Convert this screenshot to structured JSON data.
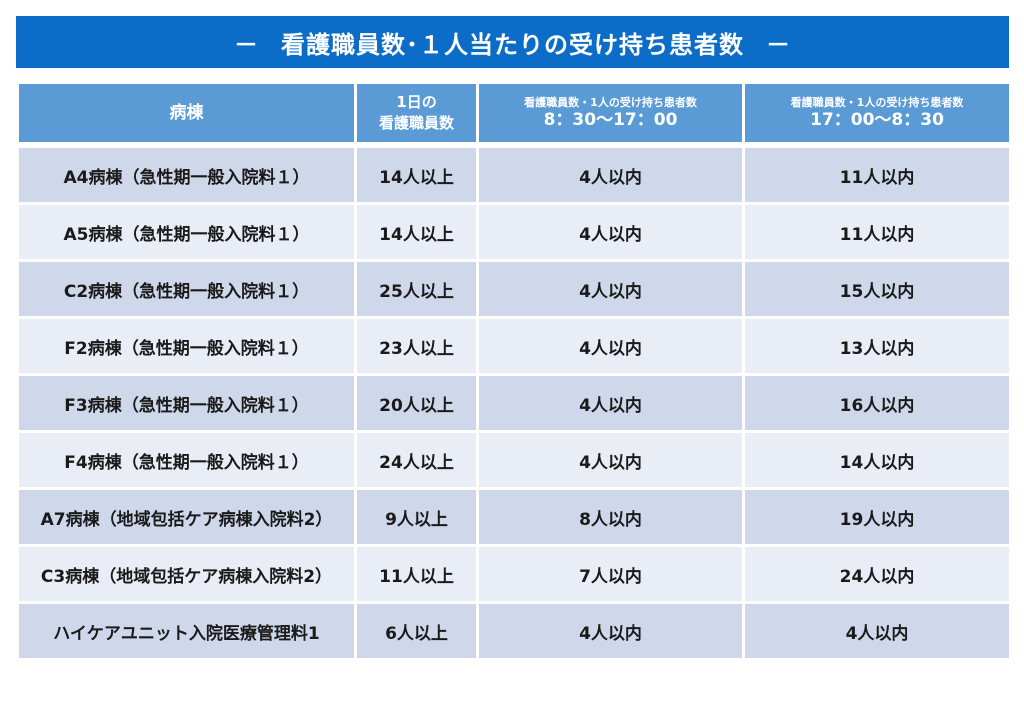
{
  "title": {
    "dash_left": "－",
    "text": "看護職員数･１人当たりの受け持ち患者数",
    "dash_right": "－"
  },
  "table": {
    "headers": {
      "ward": "病棟",
      "staff_line1": "1日の",
      "staff_line2": "看護職員数",
      "day_small": "看護職員数・1人の受け持ち患者数",
      "day_time": "8：30～17：00",
      "night_small": "看護職員数・1人の受け持ち患者数",
      "night_time": "17：00～8：30"
    },
    "rows": [
      {
        "ward": "A4病棟（急性期一般入院料１）",
        "staff": "14人以上",
        "day": "4人以内",
        "night": "11人以内"
      },
      {
        "ward": "A5病棟（急性期一般入院料１）",
        "staff": "14人以上",
        "day": "4人以内",
        "night": "11人以内"
      },
      {
        "ward": "C2病棟（急性期一般入院料１）",
        "staff": "25人以上",
        "day": "4人以内",
        "night": "15人以内"
      },
      {
        "ward": "F2病棟（急性期一般入院料１）",
        "staff": "23人以上",
        "day": "4人以内",
        "night": "13人以内"
      },
      {
        "ward": "F3病棟（急性期一般入院料１）",
        "staff": "20人以上",
        "day": "4人以内",
        "night": "16人以内"
      },
      {
        "ward": "F4病棟（急性期一般入院料１）",
        "staff": "24人以上",
        "day": "4人以内",
        "night": "14人以内"
      },
      {
        "ward": "A7病棟（地域包括ケア病棟入院料2）",
        "staff": "9人以上",
        "day": "8人以内",
        "night": "19人以内"
      },
      {
        "ward": "C3病棟（地域包括ケア病棟入院料2）",
        "staff": "11人以上",
        "day": "7人以内",
        "night": "24人以内"
      },
      {
        "ward": "ハイケアユニット入院医療管理料1",
        "staff": "6人以上",
        "day": "4人以内",
        "night": "4人以内"
      }
    ]
  }
}
